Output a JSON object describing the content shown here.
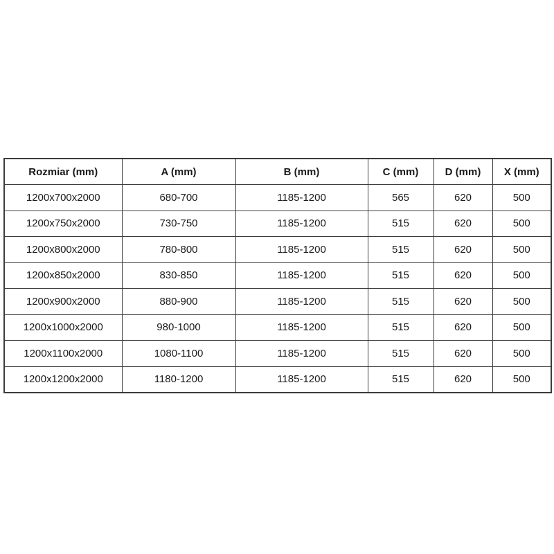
{
  "table": {
    "headers": [
      {
        "id": "rozmiar",
        "label": "Rozmiar (mm)"
      },
      {
        "id": "a",
        "label": "A (mm)"
      },
      {
        "id": "b",
        "label": "B (mm)"
      },
      {
        "id": "c",
        "label": "C (mm)"
      },
      {
        "id": "d",
        "label": "D (mm)"
      },
      {
        "id": "x",
        "label": "X (mm)"
      }
    ],
    "rows": [
      [
        "1200x700x2000",
        "680-700",
        "1185-1200",
        "565",
        "620",
        "500"
      ],
      [
        "1200x750x2000",
        "730-750",
        "1185-1200",
        "515",
        "620",
        "500"
      ],
      [
        "1200x800x2000",
        "780-800",
        "1185-1200",
        "515",
        "620",
        "500"
      ],
      [
        "1200x850x2000",
        "830-850",
        "1185-1200",
        "515",
        "620",
        "500"
      ],
      [
        "1200x900x2000",
        "880-900",
        "1185-1200",
        "515",
        "620",
        "500"
      ],
      [
        "1200x1000x2000",
        "980-1000",
        "1185-1200",
        "515",
        "620",
        "500"
      ],
      [
        "1200x1100x2000",
        "1080-1100",
        "1185-1200",
        "515",
        "620",
        "500"
      ],
      [
        "1200x1200x2000",
        "1180-1200",
        "1185-1200",
        "515",
        "620",
        "500"
      ]
    ],
    "colors": {
      "border": "#3b3b3b",
      "text": "#1a1a1a",
      "background": "#ffffff"
    }
  }
}
